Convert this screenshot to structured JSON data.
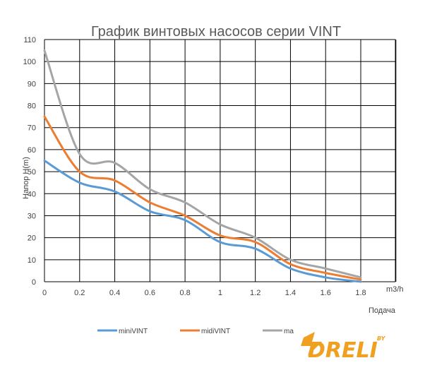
{
  "chart_data": {
    "type": "line",
    "title": "График винтовых насосов серии VINT",
    "xlabel": "Подача",
    "x_unit": "m3/h",
    "ylabel": "Напор  H(m)",
    "xlim": [
      0,
      1.8
    ],
    "ylim": [
      0,
      110
    ],
    "x": [
      0,
      0.2,
      0.4,
      0.6,
      0.8,
      1.0,
      1.2,
      1.4,
      1.6,
      1.8
    ],
    "x_ticks": [
      "0",
      "0.2",
      "0.4",
      "0.6",
      "0.8",
      "1",
      "1.2",
      "1.4",
      "1.6",
      "1.8"
    ],
    "y_ticks": [
      "0",
      "10",
      "20",
      "30",
      "40",
      "50",
      "60",
      "70",
      "80",
      "90",
      "100",
      "110"
    ],
    "grid": true,
    "legend_position": "bottom",
    "series": [
      {
        "name": "miniVINT",
        "color": "#5b9bd5",
        "values": [
          55,
          45,
          41,
          32,
          28,
          18,
          15,
          6,
          2,
          0
        ]
      },
      {
        "name": "midiVINT",
        "color": "#ed7d31",
        "values": [
          75,
          50,
          46,
          36,
          30,
          21,
          18,
          8,
          4,
          1
        ]
      },
      {
        "name": "ma",
        "color": "#a5a5a5",
        "values": [
          105,
          58,
          54,
          42,
          36,
          26,
          20,
          10,
          6,
          2
        ]
      }
    ]
  },
  "logo": {
    "text": "DRELI",
    "badge": "BY",
    "color": "#f0a020"
  }
}
